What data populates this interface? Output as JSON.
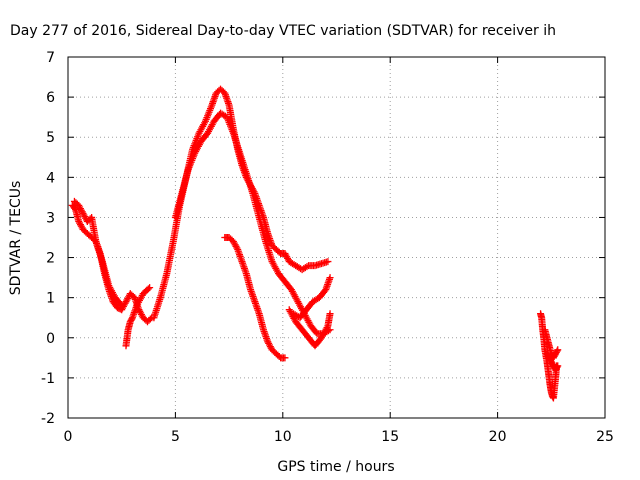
{
  "chart_data": {
    "type": "scatter",
    "title": "Day 277 of 2016, Sidereal Day-to-day VTEC variation (SDTVAR) for receiver ih",
    "xlabel": "GPS time / hours",
    "ylabel": "SDTVAR / TECUs",
    "xlim": [
      0,
      25
    ],
    "ylim": [
      -2,
      7
    ],
    "xticks": [
      "0",
      "5",
      "10",
      "15",
      "20",
      "25"
    ],
    "yticks": [
      "-2",
      "-1",
      "0",
      "1",
      "2",
      "3",
      "4",
      "5",
      "6",
      "7"
    ],
    "grid": true,
    "legend": "none",
    "marker": "plus",
    "color": "#ff0000",
    "series": [
      {
        "x": [
          0.2,
          0.35,
          0.5,
          0.7,
          0.9,
          1.1,
          1.3,
          1.5,
          1.7,
          1.9,
          2.1,
          2.3,
          2.5,
          2.7,
          2.9,
          3.1,
          3.3,
          3.5,
          3.7,
          3.9
        ],
        "y": [
          3.3,
          3.2,
          2.9,
          2.7,
          2.6,
          2.5,
          2.4,
          2.1,
          1.6,
          1.2,
          0.9,
          0.75,
          0.7,
          0.9,
          1.1,
          1.0,
          0.7,
          0.5,
          0.4,
          0.5
        ]
      },
      {
        "x": [
          0.3,
          0.5,
          0.7,
          0.9,
          1.1,
          1.3,
          1.6,
          1.9,
          2.2,
          2.5
        ],
        "y": [
          3.4,
          3.3,
          3.1,
          2.9,
          3.0,
          2.4,
          1.9,
          1.3,
          1.0,
          0.8
        ]
      },
      {
        "x": [
          2.7,
          2.8,
          2.9,
          3.0,
          3.2,
          3.5,
          3.8
        ],
        "y": [
          -0.2,
          0.2,
          0.4,
          0.5,
          0.8,
          1.1,
          1.25
        ]
      },
      {
        "x": [
          4.0,
          4.3,
          4.6,
          4.9,
          5.2,
          5.5,
          5.8,
          6.1,
          6.4,
          6.7,
          6.9,
          7.1,
          7.3,
          7.5,
          7.7,
          7.9,
          8.1,
          8.3,
          8.5,
          8.7,
          8.9,
          9.1,
          9.3,
          9.5,
          9.7,
          9.9,
          10.1,
          10.3,
          10.6,
          10.9,
          11.2,
          11.5,
          11.8,
          12.1
        ],
        "y": [
          0.5,
          1.0,
          1.6,
          2.4,
          3.3,
          4.0,
          4.7,
          5.1,
          5.4,
          5.8,
          6.1,
          6.2,
          6.1,
          5.8,
          5.2,
          4.7,
          4.3,
          4.0,
          3.8,
          3.6,
          3.3,
          3.0,
          2.6,
          2.3,
          2.2,
          2.1,
          2.1,
          1.9,
          1.8,
          1.7,
          1.8,
          1.8,
          1.85,
          1.9
        ]
      },
      {
        "x": [
          5.0,
          5.3,
          5.6,
          5.9,
          6.2,
          6.5,
          6.8,
          7.1,
          7.4,
          7.7,
          8.0,
          8.3,
          8.6,
          8.9,
          9.2,
          9.5,
          9.8,
          10.1,
          10.4,
          10.7,
          11.0,
          11.3,
          11.6,
          11.9,
          12.2
        ],
        "y": [
          3.0,
          3.6,
          4.2,
          4.6,
          4.9,
          5.1,
          5.4,
          5.6,
          5.5,
          5.1,
          4.6,
          4.1,
          3.6,
          3.0,
          2.4,
          1.9,
          1.6,
          1.4,
          1.2,
          0.9,
          0.6,
          0.3,
          0.1,
          0.1,
          0.2
        ]
      },
      {
        "x": [
          7.3,
          7.5,
          7.7,
          7.9,
          8.1,
          8.3,
          8.5,
          8.7,
          8.9,
          9.1,
          9.3,
          9.5,
          9.7,
          9.9,
          10.1
        ],
        "y": [
          2.5,
          2.5,
          2.4,
          2.2,
          1.9,
          1.6,
          1.2,
          0.9,
          0.6,
          0.2,
          -0.1,
          -0.3,
          -0.4,
          -0.5,
          -0.5
        ]
      },
      {
        "x": [
          10.3,
          10.6,
          10.9,
          11.2,
          11.5,
          11.8,
          12.1,
          12.2
        ],
        "y": [
          0.7,
          0.4,
          0.2,
          0.0,
          -0.2,
          0.0,
          0.3,
          0.6
        ]
      },
      {
        "x": [
          10.5,
          10.8,
          11.1,
          11.4,
          11.7,
          12.0,
          12.2
        ],
        "y": [
          0.6,
          0.5,
          0.7,
          0.9,
          1.0,
          1.2,
          1.5
        ]
      },
      {
        "x": [
          22.0,
          22.05,
          22.1,
          22.15,
          22.2,
          22.3,
          22.35,
          22.4,
          22.45,
          22.5,
          22.55,
          22.6,
          22.7,
          22.75
        ],
        "y": [
          0.6,
          0.5,
          0.2,
          0.0,
          -0.3,
          -0.6,
          -0.8,
          -1.0,
          -1.2,
          -1.35,
          -1.45,
          -1.5,
          -1.0,
          -0.7
        ]
      },
      {
        "x": [
          22.2,
          22.3,
          22.4,
          22.5,
          22.6,
          22.7,
          22.8
        ],
        "y": [
          0.2,
          0.0,
          -0.2,
          -0.4,
          -0.5,
          -0.4,
          -0.3
        ]
      },
      {
        "x": [
          22.3,
          22.4,
          22.5,
          22.6,
          22.7,
          22.8
        ],
        "y": [
          -0.4,
          -0.5,
          -0.6,
          -0.7,
          -0.8,
          -0.7
        ]
      }
    ]
  }
}
